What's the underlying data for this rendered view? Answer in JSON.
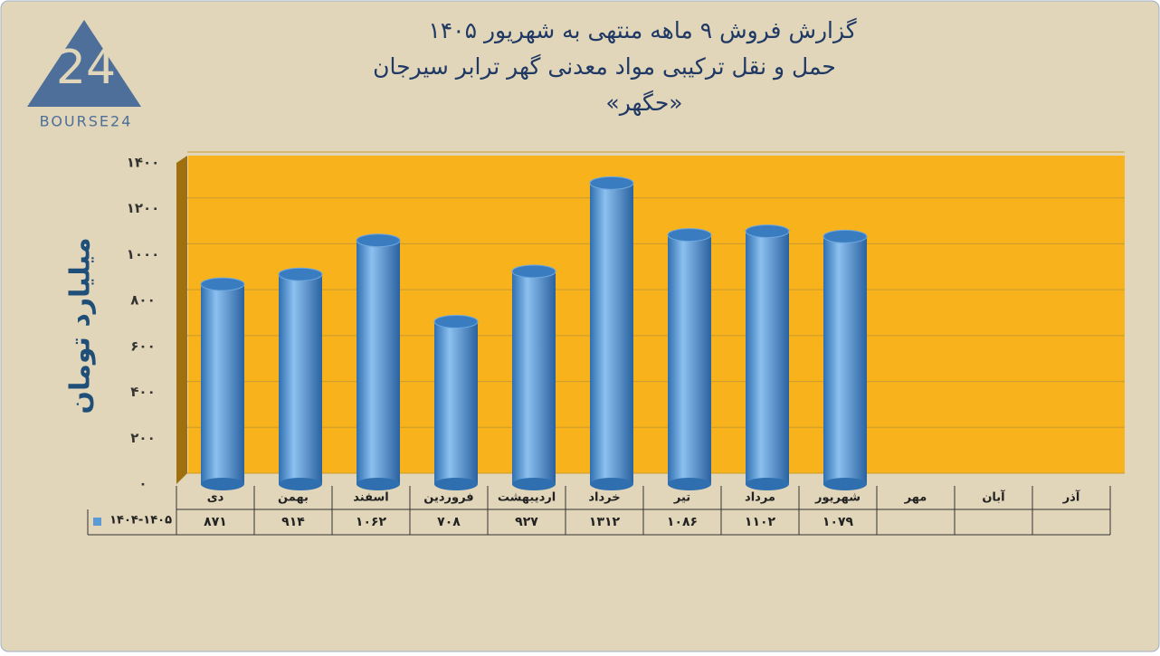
{
  "logo": {
    "mark": "24",
    "brand": "BOURSE24"
  },
  "chart_data": {
    "type": "bar",
    "title": "گزارش  فروش ۹ ماهه منتهی به شهریور ۱۴۰۵",
    "subtitle": "حمل و نقل ترکیبی مواد معدنی گهر ترابر سیرجان",
    "subtitle2": "«حگهر»",
    "y_label": "میلیارد تومان",
    "categories": [
      "دی",
      "بهمن",
      "اسفند",
      "فروردین",
      "اردیبهشت",
      "خرداد",
      "تیر",
      "مرداد",
      "شهریور",
      "مهر",
      "آبان",
      "آذر"
    ],
    "series": [
      {
        "name": "۱۴۰۴-۱۴۰۵",
        "color": "#5b9bd5",
        "values": [
          871,
          914,
          1062,
          708,
          927,
          1312,
          1086,
          1102,
          1079,
          null,
          null,
          null
        ],
        "value_labels": [
          "۸۷۱",
          "۹۱۴",
          "۱۰۶۲",
          "۷۰۸",
          "۹۲۷",
          "۱۳۱۲",
          "۱۰۸۶",
          "۱۱۰۲",
          "۱۰۷۹",
          null,
          null,
          null
        ]
      }
    ],
    "ylim": [
      0,
      1400
    ],
    "yticks": [
      {
        "value": 0,
        "label": "۰"
      },
      {
        "value": 200,
        "label": "۲۰۰"
      },
      {
        "value": 400,
        "label": "۴۰۰"
      },
      {
        "value": 600,
        "label": "۶۰۰"
      },
      {
        "value": 800,
        "label": "۸۰۰"
      },
      {
        "value": 1000,
        "label": "۱۰۰۰"
      },
      {
        "value": 1200,
        "label": "۱۲۰۰"
      },
      {
        "value": 1400,
        "label": "۱۴۰۰"
      }
    ],
    "grid": true,
    "plot_color": "#f8b21c"
  }
}
